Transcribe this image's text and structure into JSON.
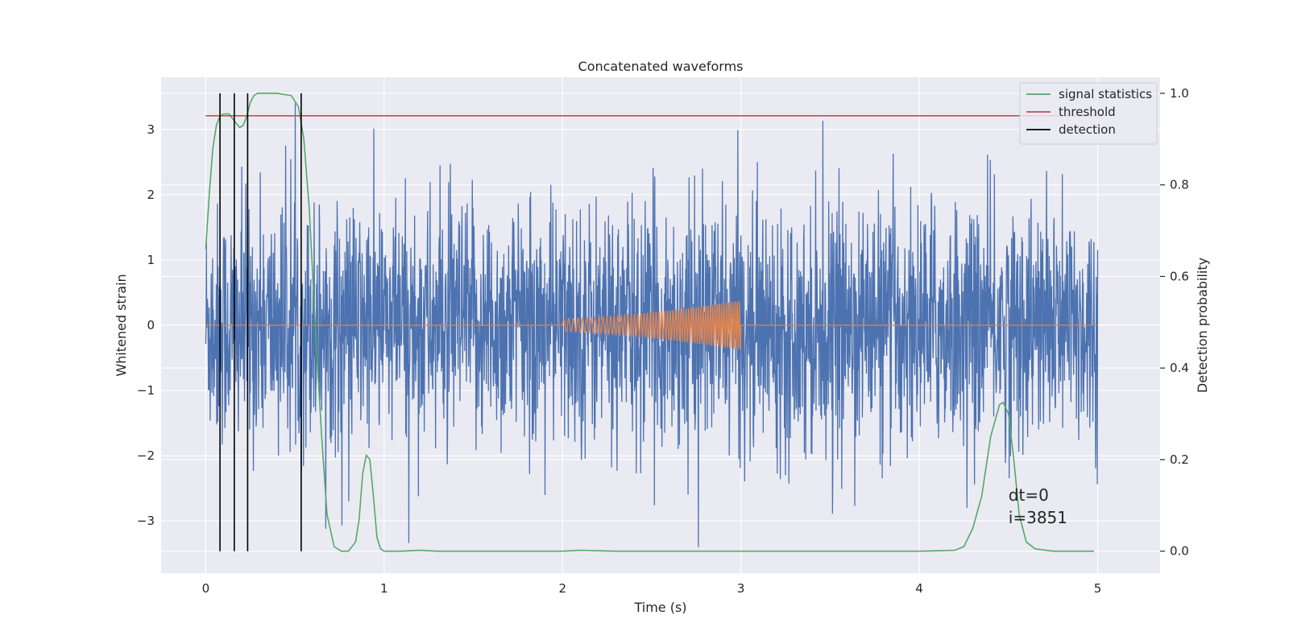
{
  "chart_data": {
    "type": "line",
    "title": "Concatenated waveforms",
    "xlabel": "Time (s)",
    "ylabel": "Whitened strain",
    "y2label": "Detection probability",
    "xlim": [
      -0.25,
      5.35
    ],
    "ylim": [
      -3.8,
      3.8
    ],
    "y2lim": [
      -0.048,
      1.035
    ],
    "xticks": [
      0,
      1,
      2,
      3,
      4,
      5
    ],
    "xtick_labels": [
      "0",
      "1",
      "2",
      "3",
      "4",
      "5"
    ],
    "yticks": [
      -3,
      -2,
      -1,
      0,
      1,
      2,
      3
    ],
    "ytick_labels": [
      "−3",
      "−2",
      "−1",
      "0",
      "1",
      "2",
      "3"
    ],
    "y2ticks": [
      0.0,
      0.2,
      0.4,
      0.6,
      0.8,
      1.0
    ],
    "y2tick_labels": [
      "0.0",
      "0.2",
      "0.4",
      "0.6",
      "0.8",
      "1.0"
    ],
    "grid": true,
    "background": "#eaeaf2",
    "legend_position": "top-right",
    "series": [
      {
        "name": "",
        "axis": "left",
        "color": "#4c72b0",
        "kind": "noise",
        "x_range": [
          0,
          5
        ],
        "amplitude_typical": 2.3,
        "amplitude_max": 3.4
      },
      {
        "name": "",
        "axis": "left",
        "color": "#dd8452",
        "kind": "chirp",
        "baseline": 0,
        "x_range": [
          0,
          5
        ],
        "chirp_range": [
          2.0,
          3.0
        ],
        "amplitude_start": 0.1,
        "amplitude_end": 0.38
      },
      {
        "name": "signal statistics",
        "axis": "right",
        "color": "#55a868",
        "x": [
          0,
          0.02,
          0.04,
          0.06,
          0.08,
          0.1,
          0.13,
          0.16,
          0.19,
          0.21,
          0.23,
          0.25,
          0.27,
          0.29,
          0.31,
          0.34,
          0.4,
          0.48,
          0.52,
          0.55,
          0.58,
          0.6,
          0.62,
          0.65,
          0.68,
          0.72,
          0.76,
          0.8,
          0.84,
          0.86,
          0.88,
          0.9,
          0.92,
          0.94,
          0.96,
          0.98,
          1.0,
          1.05,
          1.1,
          1.2,
          1.3,
          1.6,
          2.0,
          2.1,
          2.3,
          3.0,
          3.5,
          4.0,
          4.2,
          4.25,
          4.3,
          4.35,
          4.4,
          4.45,
          4.47,
          4.5,
          4.53,
          4.56,
          4.6,
          4.65,
          4.75,
          4.98
        ],
        "values": [
          0.66,
          0.78,
          0.88,
          0.93,
          0.95,
          0.955,
          0.955,
          0.94,
          0.925,
          0.93,
          0.95,
          0.98,
          0.995,
          1.0,
          1.0,
          1.0,
          1.0,
          0.995,
          0.97,
          0.9,
          0.75,
          0.6,
          0.45,
          0.25,
          0.08,
          0.01,
          0.0,
          0.0,
          0.02,
          0.07,
          0.17,
          0.21,
          0.2,
          0.12,
          0.03,
          0.005,
          0.0,
          0.0,
          0.0,
          0.002,
          0.0,
          0.0,
          0.0,
          0.002,
          0.0,
          0.0,
          0.0,
          0.0,
          0.002,
          0.01,
          0.05,
          0.12,
          0.25,
          0.32,
          0.325,
          0.3,
          0.2,
          0.08,
          0.02,
          0.005,
          0.0,
          0.0
        ]
      },
      {
        "name": "threshold",
        "axis": "right",
        "color": "#c44e52",
        "x": [
          0,
          5.05
        ],
        "values": [
          0.951,
          0.951
        ]
      },
      {
        "name": "detection",
        "axis": "right",
        "color": "#000000",
        "kind": "vlines",
        "x": [
          0.08,
          0.16,
          0.235,
          0.535
        ],
        "ymin": 0,
        "ymax": 1
      }
    ],
    "annotations": [
      {
        "lines": [
          "dt=0",
          "i=3851"
        ],
        "x": 4.5,
        "y2": 0.11
      }
    ]
  }
}
